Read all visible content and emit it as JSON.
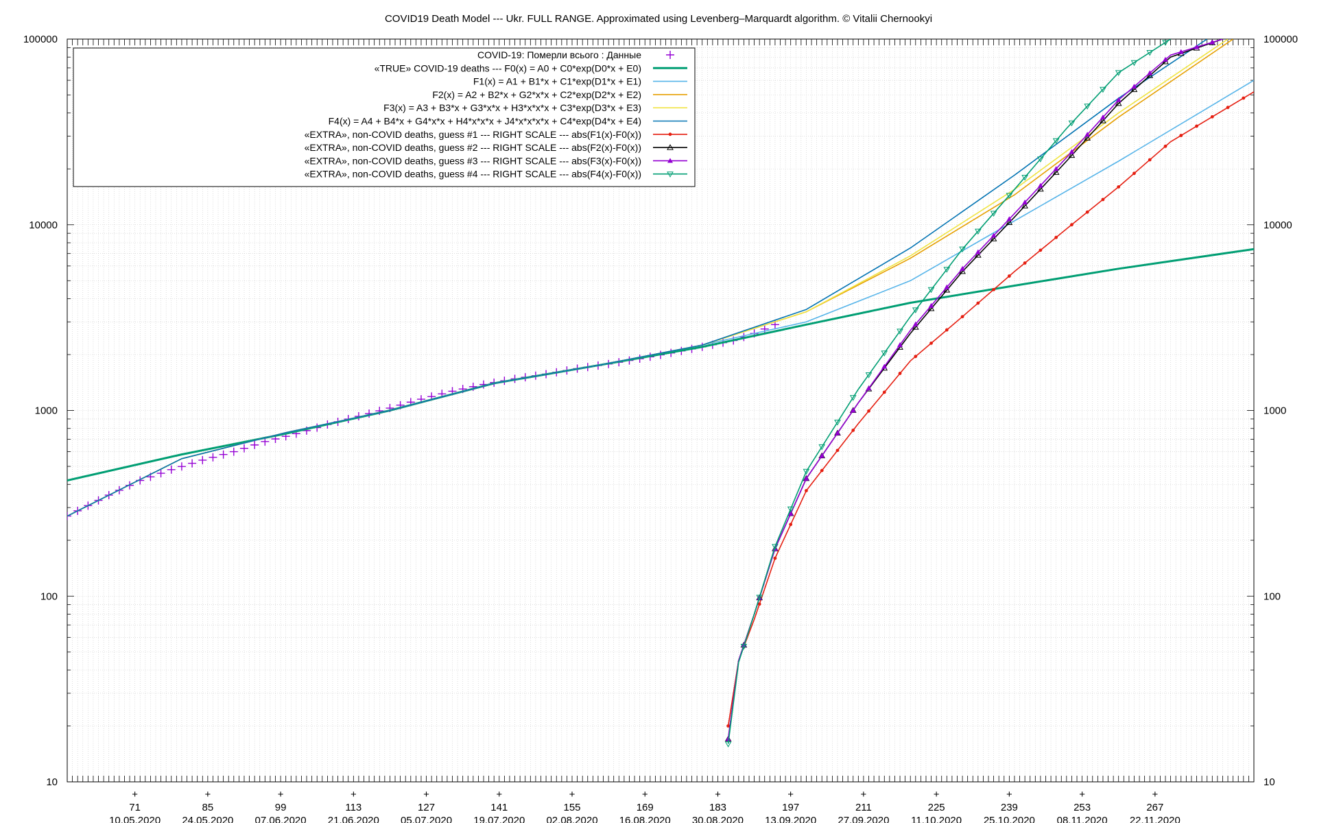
{
  "chart_data": {
    "type": "line",
    "title": "COVID19 Death Model --- Ukr. FULL RANGE. Approximated using Levenberg–Marquardt algorithm. © Vitalii Chernookyi",
    "y_scale": "log",
    "ylim": [
      10,
      100000
    ],
    "xlim": [
      58,
      286
    ],
    "grid": true,
    "legend_position": "top-left",
    "y_ticks": [
      "10",
      "100",
      "1000",
      "10000",
      "100000"
    ],
    "x_ticks": [
      {
        "x": 71,
        "label": "71",
        "date": "10.05.2020"
      },
      {
        "x": 85,
        "label": "85",
        "date": "24.05.2020"
      },
      {
        "x": 99,
        "label": "99",
        "date": "07.06.2020"
      },
      {
        "x": 113,
        "label": "113",
        "date": "21.06.2020"
      },
      {
        "x": 127,
        "label": "127",
        "date": "05.07.2020"
      },
      {
        "x": 141,
        "label": "141",
        "date": "19.07.2020"
      },
      {
        "x": 155,
        "label": "155",
        "date": "02.08.2020"
      },
      {
        "x": 169,
        "label": "169",
        "date": "16.08.2020"
      },
      {
        "x": 183,
        "label": "183",
        "date": "30.08.2020"
      },
      {
        "x": 197,
        "label": "197",
        "date": "13.09.2020"
      },
      {
        "x": 211,
        "label": "211",
        "date": "27.09.2020"
      },
      {
        "x": 225,
        "label": "225",
        "date": "11.10.2020"
      },
      {
        "x": 239,
        "label": "239",
        "date": "25.10.2020"
      },
      {
        "x": 253,
        "label": "253",
        "date": "08.11.2020"
      },
      {
        "x": 267,
        "label": "267",
        "date": "22.11.2020"
      }
    ],
    "series": [
      {
        "name": "COVID-19: Померли всього : Данные",
        "color": "#9400d3",
        "style": "points-plus",
        "points": [
          [
            58,
            270
          ],
          [
            66,
            350
          ],
          [
            72,
            420
          ],
          [
            78,
            480
          ],
          [
            84,
            540
          ],
          [
            90,
            600
          ],
          [
            96,
            680
          ],
          [
            102,
            750
          ],
          [
            108,
            840
          ],
          [
            114,
            930
          ],
          [
            120,
            1030
          ],
          [
            126,
            1150
          ],
          [
            132,
            1270
          ],
          [
            138,
            1380
          ],
          [
            144,
            1480
          ],
          [
            150,
            1570
          ],
          [
            156,
            1680
          ],
          [
            162,
            1780
          ],
          [
            168,
            1900
          ],
          [
            174,
            2040
          ],
          [
            180,
            2200
          ],
          [
            186,
            2380
          ],
          [
            190,
            2600
          ],
          [
            194,
            2900
          ]
        ]
      },
      {
        "name": "«TRUE» COVID-19 deaths   ---   F0(x) = A0 + C0*exp(D0*x + E0)",
        "color": "#009e73",
        "style": "line-thick",
        "points": [
          [
            58,
            420
          ],
          [
            80,
            580
          ],
          [
            100,
            750
          ],
          [
            120,
            1000
          ],
          [
            140,
            1400
          ],
          [
            160,
            1750
          ],
          [
            180,
            2200
          ],
          [
            200,
            2900
          ],
          [
            220,
            3800
          ],
          [
            240,
            4700
          ],
          [
            260,
            5800
          ],
          [
            286,
            7400
          ]
        ]
      },
      {
        "name": "F1(x) = A1 + B1*x + C1*exp(D1*x + E1)",
        "color": "#56b4e9",
        "style": "line",
        "points": [
          [
            58,
            270
          ],
          [
            80,
            550
          ],
          [
            100,
            760
          ],
          [
            120,
            1000
          ],
          [
            140,
            1400
          ],
          [
            160,
            1750
          ],
          [
            180,
            2250
          ],
          [
            200,
            3000
          ],
          [
            220,
            5000
          ],
          [
            240,
            10500
          ],
          [
            260,
            22000
          ],
          [
            286,
            60000
          ]
        ]
      },
      {
        "name": "F2(x) = A2 + B2*x + G2*x*x + C2*exp(D2*x + E2)",
        "color": "#e69f00",
        "style": "line",
        "points": [
          [
            58,
            270
          ],
          [
            80,
            550
          ],
          [
            100,
            760
          ],
          [
            120,
            1000
          ],
          [
            140,
            1400
          ],
          [
            160,
            1750
          ],
          [
            180,
            2250
          ],
          [
            200,
            3400
          ],
          [
            220,
            6600
          ],
          [
            240,
            14500
          ],
          [
            260,
            38000
          ],
          [
            282,
            100000
          ]
        ]
      },
      {
        "name": "F3(x) = A3 + B3*x + G3*x*x + H3*x*x*x + C3*exp(D3*x + E3)",
        "color": "#f0e442",
        "style": "line",
        "points": [
          [
            58,
            270
          ],
          [
            80,
            550
          ],
          [
            100,
            760
          ],
          [
            120,
            1000
          ],
          [
            140,
            1400
          ],
          [
            160,
            1750
          ],
          [
            180,
            2250
          ],
          [
            200,
            3400
          ],
          [
            220,
            6800
          ],
          [
            240,
            15500
          ],
          [
            260,
            40000
          ],
          [
            281,
            100000
          ]
        ]
      },
      {
        "name": "F4(x) = A4 + B4*x + G4*x*x + H4*x*x*x + J4*x*x*x*x + C4*exp(D4*x + E4)",
        "color": "#0072b2",
        "style": "line",
        "points": [
          [
            58,
            270
          ],
          [
            80,
            550
          ],
          [
            100,
            760
          ],
          [
            120,
            1000
          ],
          [
            140,
            1400
          ],
          [
            160,
            1750
          ],
          [
            180,
            2250
          ],
          [
            200,
            3500
          ],
          [
            220,
            7500
          ],
          [
            240,
            18500
          ],
          [
            260,
            48000
          ],
          [
            277,
            100000
          ]
        ]
      },
      {
        "name": "«EXTRA», non-COVID deaths, guess #1   ---   RIGHT SCALE   ---   abs(F1(x)-F0(x))",
        "color": "#e51e10",
        "style": "line-circle",
        "points": [
          [
            185,
            20
          ],
          [
            187,
            45
          ],
          [
            190,
            75
          ],
          [
            194,
            160
          ],
          [
            200,
            370
          ],
          [
            210,
            850
          ],
          [
            220,
            1850
          ],
          [
            230,
            3200
          ],
          [
            240,
            5600
          ],
          [
            250,
            9500
          ],
          [
            260,
            16000
          ],
          [
            270,
            28000
          ],
          [
            286,
            52000
          ]
        ]
      },
      {
        "name": "«EXTRA», non-COVID deaths, guess #2   ---   RIGHT SCALE   ---   abs(F2(x)-F0(x))",
        "color": "#000000",
        "style": "line-triangle-open",
        "points": [
          [
            185,
            17
          ],
          [
            187,
            45
          ],
          [
            190,
            80
          ],
          [
            194,
            180
          ],
          [
            200,
            430
          ],
          [
            210,
            1100
          ],
          [
            220,
            2600
          ],
          [
            230,
            5600
          ],
          [
            240,
            11000
          ],
          [
            250,
            22000
          ],
          [
            260,
            45000
          ],
          [
            270,
            80000
          ],
          [
            280,
            100000
          ]
        ]
      },
      {
        "name": "«EXTRA», non-COVID deaths, guess #3   ---   RIGHT SCALE   ---   abs(F3(x)-F0(x))",
        "color": "#9400d3",
        "style": "line-triangle-filled",
        "points": [
          [
            185,
            17
          ],
          [
            187,
            45
          ],
          [
            190,
            80
          ],
          [
            194,
            180
          ],
          [
            200,
            430
          ],
          [
            210,
            1100
          ],
          [
            220,
            2700
          ],
          [
            230,
            5800
          ],
          [
            240,
            11500
          ],
          [
            250,
            23000
          ],
          [
            260,
            47000
          ],
          [
            270,
            82000
          ],
          [
            280,
            100000
          ]
        ]
      },
      {
        "name": "«EXTRA», non-COVID deaths, guess #4   ---   RIGHT SCALE   ---   abs(F4(x)-F0(x))",
        "color": "#009e73",
        "style": "line-triangle-down",
        "points": [
          [
            185,
            16
          ],
          [
            187,
            44
          ],
          [
            190,
            80
          ],
          [
            194,
            185
          ],
          [
            200,
            470
          ],
          [
            210,
            1300
          ],
          [
            220,
            3200
          ],
          [
            230,
            7400
          ],
          [
            240,
            15500
          ],
          [
            250,
            33000
          ],
          [
            260,
            66000
          ],
          [
            270,
            100000
          ]
        ]
      }
    ]
  }
}
